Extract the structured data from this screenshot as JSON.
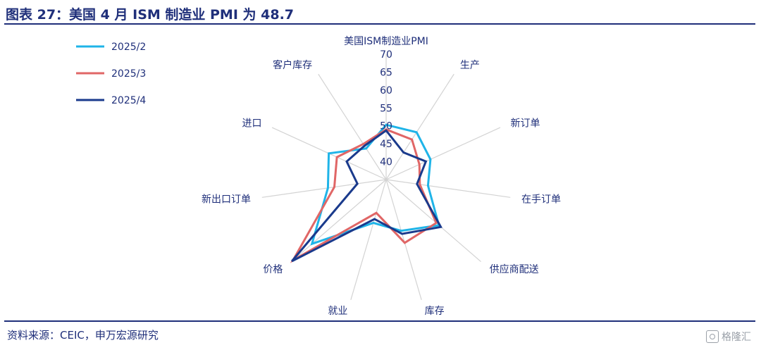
{
  "title": "图表 27：美国 4 月 ISM 制造业 PMI 为 48.7",
  "source": "资料来源：CEIC，申万宏源研究",
  "watermark": "格隆汇",
  "colors": {
    "title": "#1f2f7a",
    "axis_text": "#1f2f7a",
    "grid": "#d3d3d3"
  },
  "chart_data": {
    "type": "radar",
    "categories": [
      "美国ISM制造业PMI",
      "生产",
      "新订单",
      "在手订单",
      "供应商配送",
      "库存",
      "就业",
      "价格",
      "新出口订单",
      "进口",
      "客户库存"
    ],
    "radial_ticks": [
      40,
      45,
      50,
      55,
      60,
      65,
      70
    ],
    "rlim": [
      35,
      70
    ],
    "legend_position": "left",
    "series": [
      {
        "name": "2025/2",
        "color": "#1fb4e8",
        "values": [
          50.3,
          50.7,
          48.6,
          46.8,
          54.5,
          49.9,
          47.6,
          62.4,
          51.4,
          52.6,
          45.3
        ]
      },
      {
        "name": "2025/3",
        "color": "#e06666",
        "values": [
          49.0,
          48.3,
          45.2,
          44.5,
          53.5,
          53.4,
          44.7,
          69.4,
          49.6,
          50.1,
          46.8
        ]
      },
      {
        "name": "2025/4",
        "color": "#1a3a8c",
        "values": [
          48.7,
          44.0,
          47.2,
          43.7,
          55.2,
          50.8,
          46.5,
          69.8,
          43.1,
          47.1,
          46.2
        ]
      }
    ]
  }
}
